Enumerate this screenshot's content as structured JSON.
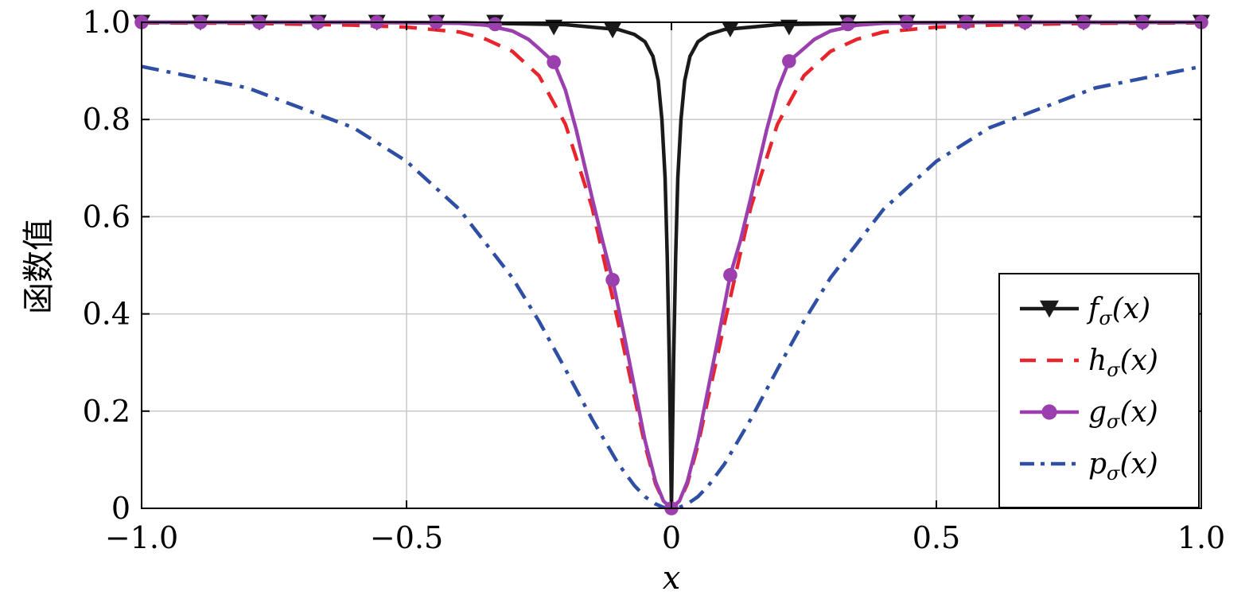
{
  "chart_data": {
    "type": "line",
    "xlabel": "x",
    "ylabel": "函数值",
    "xlim": [
      -1.0,
      1.0
    ],
    "ylim": [
      0,
      1.0
    ],
    "grid": true,
    "legend_position": "bottom-right",
    "x_ticks": [
      -1.0,
      -0.5,
      0,
      0.5,
      1.0
    ],
    "x_tick_labels": [
      "−1.0",
      "−0.5",
      "0",
      "0.5",
      "1.0"
    ],
    "y_ticks": [
      0,
      0.2,
      0.4,
      0.6,
      0.8,
      1.0
    ],
    "y_tick_labels": [
      "0",
      "0.2",
      "0.4",
      "0.6",
      "0.8",
      "1.0"
    ],
    "series": [
      {
        "name": "f_σ(x)",
        "legend_main": "f",
        "legend_sub": "σ",
        "legend_rest": "(x)",
        "color": "#1a1a1a",
        "dash": "solid",
        "marker": "triangle-down",
        "x": [
          -1.0,
          -0.8,
          -0.6,
          -0.4,
          -0.2,
          -0.15,
          -0.1,
          -0.07,
          -0.05,
          -0.035,
          -0.025,
          -0.018,
          -0.012,
          -0.008,
          -0.004,
          0,
          0.004,
          0.008,
          0.012,
          0.018,
          0.025,
          0.035,
          0.05,
          0.07,
          0.1,
          0.15,
          0.2,
          0.4,
          0.6,
          0.8,
          1.0
        ],
        "values": [
          1.0,
          1.0,
          1.0,
          0.999,
          0.995,
          0.99,
          0.985,
          0.975,
          0.96,
          0.93,
          0.88,
          0.8,
          0.68,
          0.52,
          0.3,
          0.0,
          0.3,
          0.52,
          0.68,
          0.8,
          0.88,
          0.93,
          0.96,
          0.975,
          0.985,
          0.99,
          0.995,
          0.999,
          1.0,
          1.0,
          1.0
        ],
        "marker_x": [
          -1.0,
          -0.889,
          -0.778,
          -0.667,
          -0.556,
          -0.444,
          -0.333,
          -0.222,
          -0.111,
          0.111,
          0.222,
          0.333,
          0.444,
          0.556,
          0.667,
          0.778,
          0.889,
          1.0
        ],
        "marker_values": [
          1.0,
          1.0,
          1.0,
          1.0,
          1.0,
          1.0,
          1.0,
          0.99,
          0.984,
          0.986,
          0.99,
          1.0,
          1.0,
          1.0,
          1.0,
          1.0,
          1.0,
          1.0
        ]
      },
      {
        "name": "h_σ(x)",
        "legend_main": "h",
        "legend_sub": "σ",
        "legend_rest": "(x)",
        "color": "#e8252d",
        "dash": "dashed",
        "marker": "none",
        "x": [
          -1.0,
          -0.8,
          -0.6,
          -0.5,
          -0.4,
          -0.35,
          -0.3,
          -0.25,
          -0.2,
          -0.15,
          -0.1,
          -0.07,
          -0.05,
          -0.03,
          -0.015,
          0,
          0.015,
          0.03,
          0.05,
          0.07,
          0.1,
          0.15,
          0.2,
          0.25,
          0.3,
          0.35,
          0.4,
          0.5,
          0.6,
          0.8,
          1.0
        ],
        "values": [
          0.999,
          0.998,
          0.994,
          0.99,
          0.98,
          0.965,
          0.94,
          0.89,
          0.79,
          0.62,
          0.38,
          0.23,
          0.13,
          0.05,
          0.015,
          0.0,
          0.015,
          0.05,
          0.13,
          0.23,
          0.38,
          0.62,
          0.79,
          0.89,
          0.94,
          0.965,
          0.98,
          0.99,
          0.994,
          0.998,
          0.999
        ]
      },
      {
        "name": "g_σ(x)",
        "legend_main": "g",
        "legend_sub": "σ",
        "legend_rest": "(x)",
        "color": "#9b3fae",
        "dash": "solid",
        "marker": "circle",
        "x": [
          -1.0,
          -0.6,
          -0.4,
          -0.35,
          -0.3,
          -0.27,
          -0.25,
          -0.222,
          -0.2,
          -0.18,
          -0.15,
          -0.13,
          -0.111,
          -0.09,
          -0.07,
          -0.05,
          -0.03,
          -0.015,
          0,
          0.015,
          0.03,
          0.05,
          0.07,
          0.09,
          0.111,
          0.13,
          0.15,
          0.18,
          0.2,
          0.222,
          0.25,
          0.27,
          0.3,
          0.35,
          0.4,
          0.6,
          1.0
        ],
        "values": [
          1.0,
          1.0,
          0.998,
          0.994,
          0.982,
          0.965,
          0.946,
          0.918,
          0.86,
          0.78,
          0.64,
          0.55,
          0.47,
          0.36,
          0.25,
          0.14,
          0.055,
          0.015,
          0.0,
          0.015,
          0.055,
          0.14,
          0.25,
          0.36,
          0.48,
          0.55,
          0.64,
          0.78,
          0.86,
          0.92,
          0.946,
          0.965,
          0.982,
          0.994,
          0.998,
          1.0,
          1.0
        ],
        "marker_x": [
          -1.0,
          -0.889,
          -0.778,
          -0.667,
          -0.556,
          -0.444,
          -0.333,
          -0.222,
          -0.111,
          0,
          0.111,
          0.222,
          0.333,
          0.444,
          0.556,
          0.667,
          0.778,
          0.889,
          1.0
        ],
        "marker_values": [
          1.0,
          1.0,
          1.0,
          1.0,
          1.0,
          1.0,
          0.996,
          0.918,
          0.47,
          0.0,
          0.48,
          0.92,
          0.996,
          1.0,
          1.0,
          1.0,
          1.0,
          1.0,
          1.0
        ]
      },
      {
        "name": "p_σ(x)",
        "legend_main": "p",
        "legend_sub": "σ",
        "legend_rest": "(x)",
        "color": "#2e4fa3",
        "dash": "dashdot",
        "marker": "none",
        "x": [
          -1.0,
          -0.8,
          -0.6,
          -0.5,
          -0.4,
          -0.3,
          -0.25,
          -0.2,
          -0.15,
          -0.1,
          -0.07,
          -0.05,
          -0.03,
          -0.015,
          0,
          0.015,
          0.03,
          0.05,
          0.07,
          0.1,
          0.15,
          0.2,
          0.25,
          0.3,
          0.4,
          0.5,
          0.6,
          0.8,
          1.0
        ],
        "values": [
          0.909,
          0.865,
          0.783,
          0.714,
          0.615,
          0.474,
          0.385,
          0.286,
          0.184,
          0.091,
          0.047,
          0.024,
          0.009,
          0.002,
          0.0,
          0.002,
          0.009,
          0.024,
          0.047,
          0.091,
          0.184,
          0.286,
          0.385,
          0.474,
          0.615,
          0.714,
          0.783,
          0.865,
          0.909
        ]
      }
    ]
  }
}
